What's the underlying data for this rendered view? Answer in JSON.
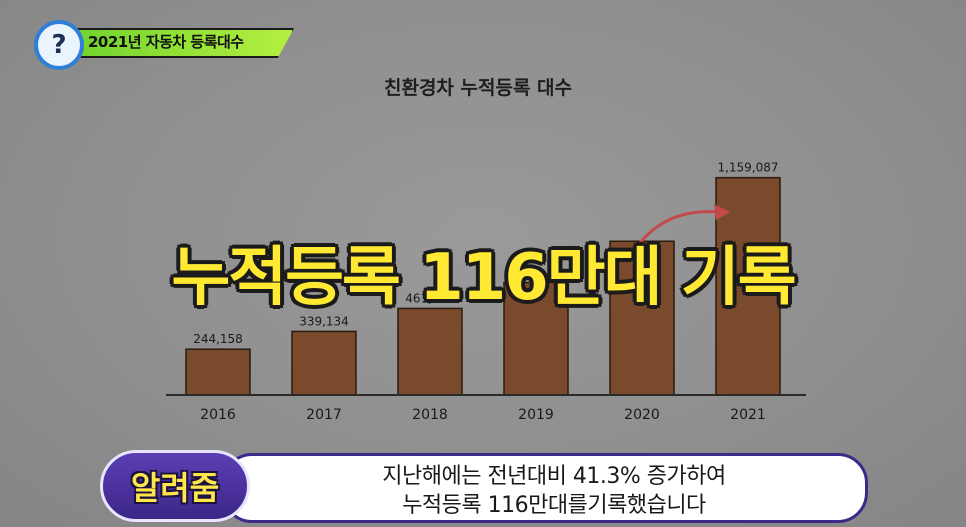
{
  "topic": {
    "label": "2021년 자동차 등록대수",
    "icon": "question-icon",
    "icon_glyph": "?"
  },
  "chart_data": {
    "type": "bar",
    "title": "친환경차 누적등록 대수",
    "categories": [
      "2016",
      "2017",
      "2018",
      "2019",
      "2020",
      "2021"
    ],
    "values": [
      244158,
      339134,
      461733,
      600000,
      820000,
      1159087
    ],
    "value_labels": [
      "244,158",
      "339,134",
      "461,733",
      "",
      "",
      "1,159,087"
    ],
    "bar_color": "#7a4a2c",
    "ylim": [
      0,
      1200000
    ],
    "grid": false,
    "legend": "none",
    "annotation": "arrow-2020-to-2021"
  },
  "overlay_caption": "누적등록 116만대 기록",
  "subtitle": {
    "speaker": "알려줌",
    "line1": "지난해에는 전년대비 41.3% 증가하여",
    "line2": "누적등록 116만대를기록했습니다"
  }
}
